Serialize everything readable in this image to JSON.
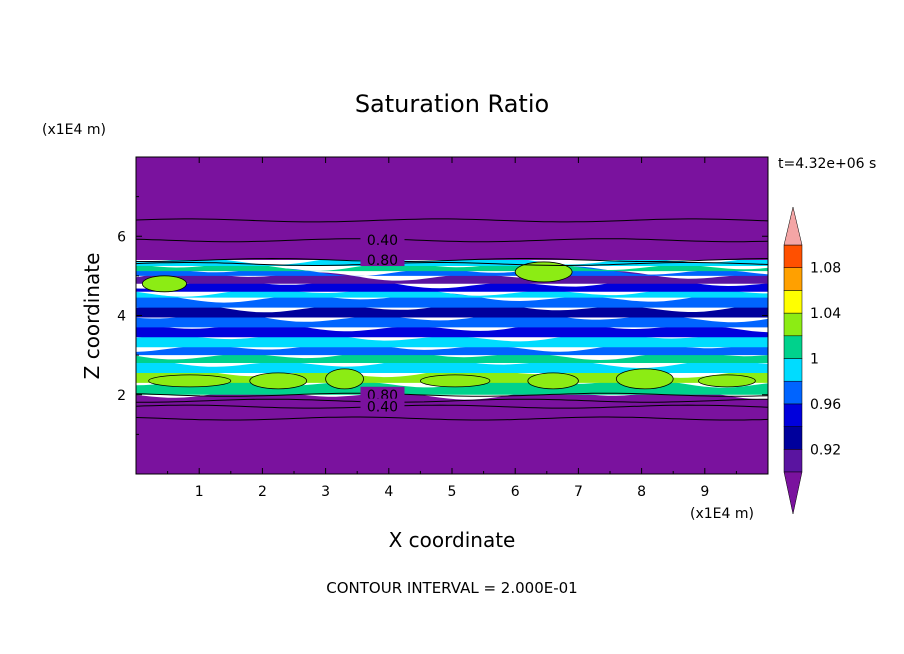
{
  "chart_data": {
    "type": "heatmap",
    "title": "Saturation Ratio",
    "xlabel": "X coordinate",
    "ylabel": "Z coordinate",
    "x_unit": "(x1E4 m)",
    "y_unit": "(x1E4 m)",
    "time_label": "t=4.32e+06 s",
    "footer": "CONTOUR INTERVAL = 2.000E-01",
    "xlim": [
      0,
      10
    ],
    "ylim": [
      0,
      8
    ],
    "x_ticks": [
      "1",
      "2",
      "3",
      "4",
      "5",
      "6",
      "7",
      "8",
      "9"
    ],
    "y_ticks": [
      "2",
      "4",
      "6"
    ],
    "contour_labels": [
      {
        "text": "0.40",
        "x": 3.9,
        "z": 5.9
      },
      {
        "text": "0.80",
        "x": 3.9,
        "z": 5.4
      },
      {
        "text": "0.80",
        "x": 3.9,
        "z": 2.0
      },
      {
        "text": "0.40",
        "x": 3.9,
        "z": 1.7
      }
    ],
    "contour_lines_z": [
      6.4,
      5.9,
      5.4,
      5.3,
      2.0,
      1.85,
      1.7,
      1.4
    ],
    "colorbar": {
      "levels": [
        0.9,
        0.92,
        0.94,
        0.96,
        0.98,
        1.0,
        1.02,
        1.04,
        1.06,
        1.08,
        1.1
      ],
      "labels": [
        "0.92",
        "0.96",
        "1",
        "1.04",
        "1.08"
      ],
      "colors": [
        "#5a14a0",
        "#00009c",
        "#0000dc",
        "#0064ff",
        "#00dcff",
        "#00d28c",
        "#8cec14",
        "#ffff00",
        "#ffa000",
        "#ff5000",
        "#e61e1e"
      ],
      "under_color": "#7a129e",
      "over_color": "#f4a5a5"
    },
    "bands": [
      {
        "z0": 0.0,
        "z1": 2.0,
        "color": "#7a129e"
      },
      {
        "z0": 2.0,
        "z1": 2.3,
        "color": "#00d28c"
      },
      {
        "z0": 2.3,
        "z1": 2.55,
        "color": "#8cec14"
      },
      {
        "z0": 2.55,
        "z1": 2.8,
        "color": "#00dcff"
      },
      {
        "z0": 2.8,
        "z1": 3.0,
        "color": "#00d28c"
      },
      {
        "z0": 3.0,
        "z1": 3.2,
        "color": "#0064ff"
      },
      {
        "z0": 3.2,
        "z1": 3.45,
        "color": "#00dcff"
      },
      {
        "z0": 3.45,
        "z1": 3.7,
        "color": "#0000dc"
      },
      {
        "z0": 3.7,
        "z1": 3.95,
        "color": "#0064ff"
      },
      {
        "z0": 3.95,
        "z1": 4.2,
        "color": "#00009c"
      },
      {
        "z0": 4.2,
        "z1": 4.45,
        "color": "#0064ff"
      },
      {
        "z0": 4.45,
        "z1": 4.6,
        "color": "#00dcff"
      },
      {
        "z0": 4.6,
        "z1": 4.8,
        "color": "#0000dc"
      },
      {
        "z0": 4.8,
        "z1": 5.0,
        "color": "#5a14a0"
      },
      {
        "z0": 5.0,
        "z1": 5.12,
        "color": "#0064ff"
      },
      {
        "z0": 5.12,
        "z1": 5.25,
        "color": "#00d28c"
      },
      {
        "z0": 5.25,
        "z1": 5.4,
        "color": "#00dcff"
      },
      {
        "z0": 5.4,
        "z1": 8.0,
        "color": "#7a129e"
      }
    ],
    "green_patches": [
      {
        "x": 0.2,
        "z": 2.35,
        "w": 1.3
      },
      {
        "x": 1.8,
        "z": 2.35,
        "w": 0.9
      },
      {
        "x": 3.0,
        "z": 2.4,
        "w": 0.6
      },
      {
        "x": 4.5,
        "z": 2.35,
        "w": 1.1
      },
      {
        "x": 6.2,
        "z": 2.35,
        "w": 0.8
      },
      {
        "x": 7.6,
        "z": 2.4,
        "w": 0.9
      },
      {
        "x": 8.9,
        "z": 2.35,
        "w": 0.9
      },
      {
        "x": 0.1,
        "z": 4.8,
        "w": 0.7
      },
      {
        "x": 6.0,
        "z": 5.1,
        "w": 0.9
      }
    ]
  }
}
